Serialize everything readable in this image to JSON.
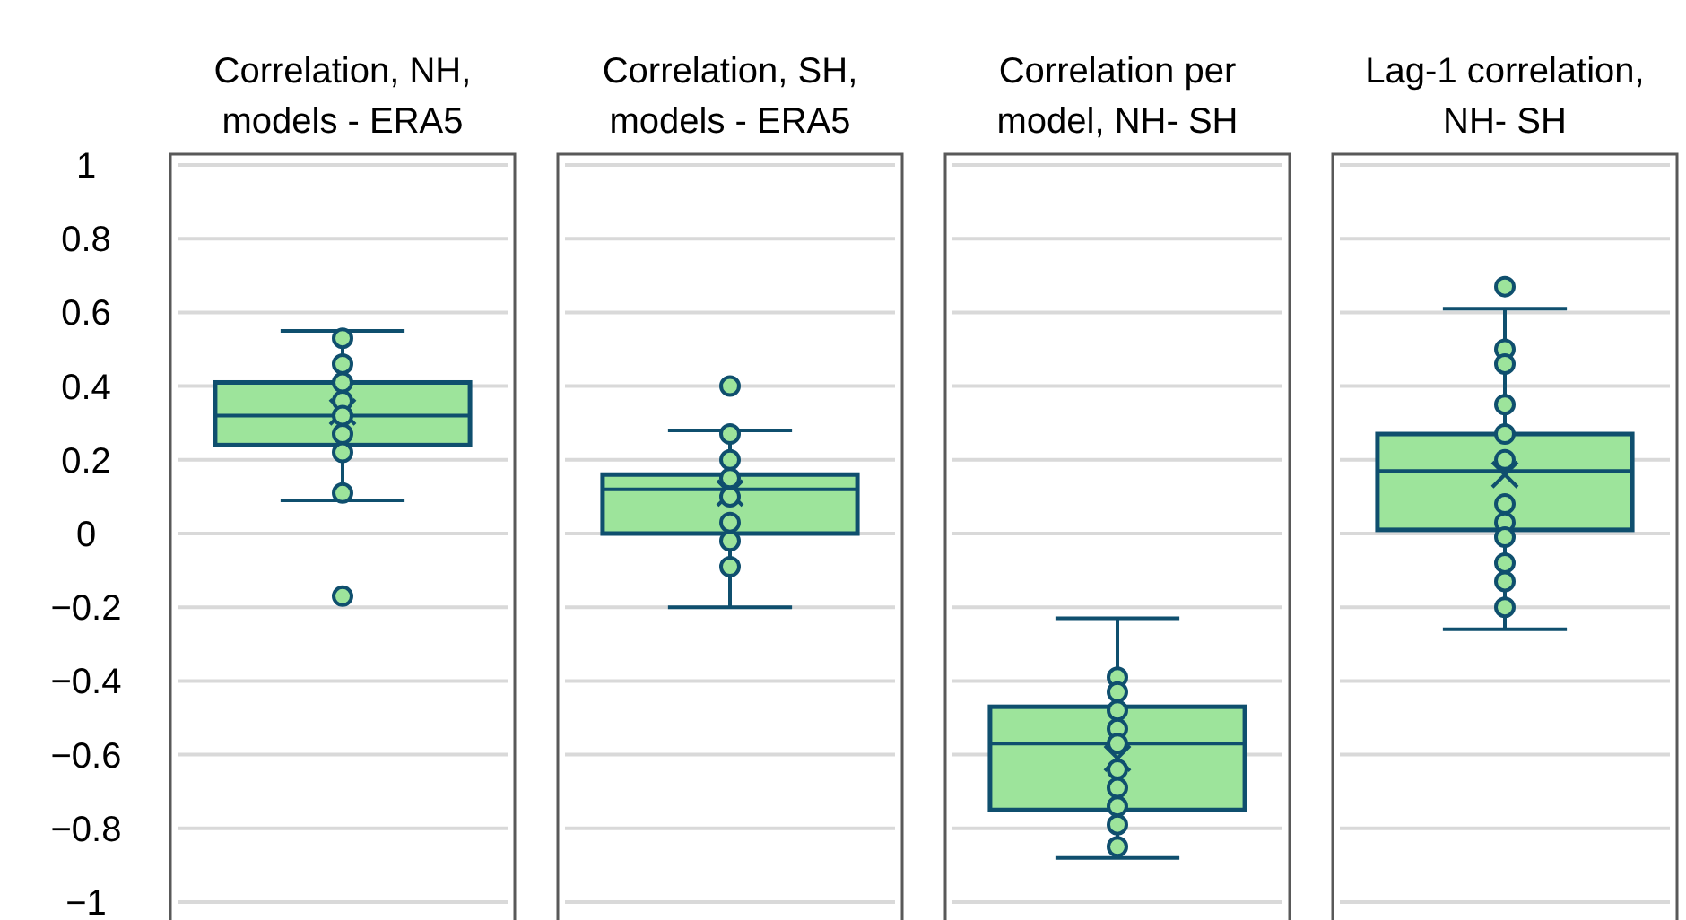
{
  "chart_data": {
    "type": "box",
    "categories": [
      "Correlation, NH, models - ERA5",
      "Correlation, SH, models - ERA5",
      "Correlation per model, NH- SH",
      "Lag-1 correlation, NH- SH"
    ],
    "ylim": [
      -1,
      1
    ],
    "yticks": [
      {
        "value": -1,
        "label": "−1"
      },
      {
        "value": -0.8,
        "label": "−0.8"
      },
      {
        "value": -0.6,
        "label": "−0.6"
      },
      {
        "value": -0.4,
        "label": "−0.4"
      },
      {
        "value": -0.2,
        "label": "−0.2"
      },
      0,
      0.2,
      0.4,
      0.6,
      0.8,
      1
    ],
    "grid": "y",
    "marker": "circle",
    "series": [
      {
        "type": "box",
        "color": "#9de49b",
        "boxes": [
          {
            "low": 0.09,
            "q1": 0.24,
            "median": 0.32,
            "q3": 0.41,
            "high": 0.55,
            "mean": 0.33,
            "outliers": [
              -0.17
            ]
          },
          {
            "low": -0.2,
            "q1": 0.0,
            "median": 0.12,
            "q3": 0.16,
            "high": 0.28,
            "mean": 0.11,
            "outliers": [
              0.4
            ]
          },
          {
            "low": -0.88,
            "q1": -0.75,
            "median": -0.57,
            "q3": -0.47,
            "high": -0.23,
            "mean": -0.61
          },
          {
            "low": -0.26,
            "q1": 0.01,
            "median": 0.17,
            "q3": 0.27,
            "high": 0.61,
            "mean": 0.16,
            "outliers": [
              0.67
            ]
          }
        ]
      },
      {
        "type": "scatter",
        "color": "#9de49b",
        "x": [
          "Correlation, NH, models - ERA5",
          "Correlation, NH, models - ERA5",
          "Correlation, NH, models - ERA5",
          "Correlation, NH, models - ERA5",
          "Correlation, NH, models - ERA5",
          "Correlation, NH, models - ERA5",
          "Correlation, NH, models - ERA5",
          "Correlation, NH, models - ERA5",
          "Correlation, SH, models - ERA5",
          "Correlation, SH, models - ERA5",
          "Correlation, SH, models - ERA5",
          "Correlation, SH, models - ERA5",
          "Correlation, SH, models - ERA5",
          "Correlation, SH, models - ERA5",
          "Correlation, SH, models - ERA5",
          "Correlation per model, NH- SH",
          "Correlation per model, NH- SH",
          "Correlation per model, NH- SH",
          "Correlation per model, NH- SH",
          "Correlation per model, NH- SH",
          "Correlation per model, NH- SH",
          "Correlation per model, NH- SH",
          "Correlation per model, NH- SH",
          "Correlation per model, NH- SH",
          "Correlation per model, NH- SH",
          "Lag-1 correlation, NH- SH",
          "Lag-1 correlation, NH- SH",
          "Lag-1 correlation, NH- SH",
          "Lag-1 correlation, NH- SH",
          "Lag-1 correlation, NH- SH",
          "Lag-1 correlation, NH- SH",
          "Lag-1 correlation, NH- SH",
          "Lag-1 correlation, NH- SH",
          "Lag-1 correlation, NH- SH",
          "Lag-1 correlation, NH- SH",
          "Lag-1 correlation, NH- SH"
        ],
        "values": [
          0.53,
          0.46,
          0.41,
          0.36,
          0.32,
          0.27,
          0.22,
          0.11,
          0.27,
          0.2,
          0.15,
          0.1,
          0.03,
          -0.02,
          -0.09,
          -0.39,
          -0.43,
          -0.48,
          -0.53,
          -0.57,
          -0.64,
          -0.69,
          -0.74,
          -0.79,
          -0.85,
          0.5,
          0.46,
          0.35,
          0.27,
          0.2,
          0.08,
          0.03,
          -0.01,
          -0.08,
          -0.13,
          -0.2
        ]
      }
    ]
  }
}
